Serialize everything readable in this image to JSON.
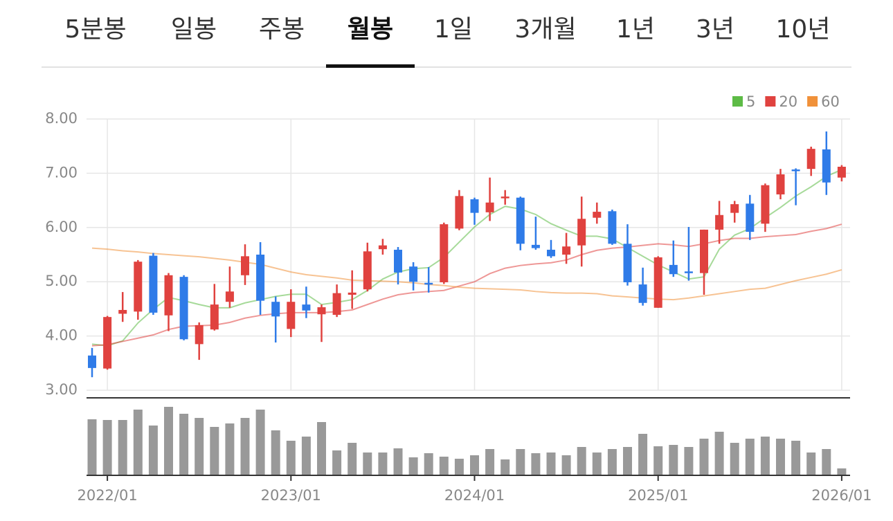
{
  "tabs": {
    "items": [
      "5분봉",
      "일봉",
      "주봉",
      "월봉",
      "1일",
      "3개월",
      "1년",
      "3년",
      "10년"
    ],
    "active": 3
  },
  "chart_data": {
    "type": "candlestick",
    "categories": [
      null,
      "2022/01",
      null,
      null,
      null,
      null,
      null,
      null,
      null,
      null,
      null,
      null,
      null,
      "2023/01",
      null,
      null,
      null,
      null,
      null,
      null,
      null,
      null,
      null,
      null,
      null,
      "2024/01",
      null,
      null,
      null,
      null,
      null,
      null,
      null,
      null,
      null,
      null,
      null,
      "2025/01",
      null,
      null,
      null,
      null,
      null,
      null,
      null,
      null,
      null,
      null,
      null,
      "2026/01"
    ],
    "open": [
      3.64,
      3.4,
      4.41,
      4.45,
      5.48,
      4.38,
      5.09,
      3.85,
      4.12,
      4.63,
      5.12,
      5.5,
      4.63,
      4.13,
      4.58,
      4.4,
      4.39,
      4.76,
      4.86,
      5.6,
      5.59,
      5.28,
      4.98,
      4.99,
      5.98,
      6.52,
      6.28,
      6.55,
      6.55,
      5.68,
      5.59,
      5.5,
      5.67,
      6.18,
      6.3,
      5.7,
      4.95,
      4.52,
      5.31,
      5.19,
      5.16,
      5.96,
      6.27,
      6.44,
      6.07,
      6.61,
      7.07,
      7.08,
      7.44,
      6.92
    ],
    "high": [
      3.78,
      4.37,
      4.81,
      5.4,
      5.53,
      5.16,
      5.12,
      4.25,
      4.96,
      5.28,
      5.69,
      5.73,
      4.73,
      4.86,
      4.91,
      4.58,
      4.95,
      5.21,
      5.72,
      5.79,
      5.64,
      5.36,
      5.27,
      6.09,
      6.69,
      6.55,
      6.92,
      6.69,
      6.57,
      6.2,
      5.77,
      5.9,
      6.57,
      6.46,
      6.33,
      6.06,
      5.26,
      5.47,
      5.76,
      6.01,
      5.96,
      6.49,
      6.49,
      6.6,
      6.81,
      7.08,
      7.09,
      7.49,
      7.77,
      7.15
    ],
    "low": [
      3.24,
      3.38,
      4.26,
      4.3,
      4.39,
      4.09,
      3.92,
      3.56,
      4.1,
      4.52,
      4.94,
      4.39,
      3.88,
      3.98,
      4.33,
      3.89,
      4.35,
      4.5,
      4.82,
      5.5,
      4.95,
      4.84,
      4.8,
      4.96,
      5.95,
      6.05,
      6.12,
      6.42,
      5.58,
      5.59,
      5.44,
      5.33,
      5.28,
      6.07,
      5.68,
      4.93,
      4.56,
      4.52,
      5.09,
      5.02,
      4.76,
      5.7,
      6.09,
      5.77,
      5.92,
      6.52,
      6.41,
      6.95,
      6.6,
      6.85
    ],
    "close": [
      3.41,
      4.35,
      4.48,
      5.37,
      4.43,
      5.12,
      3.94,
      4.2,
      4.58,
      4.82,
      5.47,
      4.65,
      4.36,
      4.63,
      4.47,
      4.53,
      4.79,
      4.8,
      5.56,
      5.67,
      5.17,
      5.0,
      4.96,
      6.06,
      6.58,
      6.27,
      6.46,
      6.57,
      5.7,
      5.62,
      5.47,
      5.65,
      6.16,
      6.29,
      5.7,
      4.99,
      4.61,
      5.45,
      5.14,
      5.17,
      5.96,
      6.23,
      6.43,
      5.92,
      6.78,
      6.98,
      7.04,
      7.45,
      6.83,
      7.12
    ],
    "up_color": "#e0423f",
    "down_color": "#2f7be8",
    "moving_averages": [
      {
        "name": "5",
        "color": "#5dbb46",
        "values": [
          3.85,
          3.82,
          3.91,
          4.24,
          4.49,
          4.71,
          4.65,
          4.58,
          4.52,
          4.52,
          4.61,
          4.67,
          4.73,
          4.77,
          4.77,
          4.58,
          4.62,
          4.67,
          4.84,
          5.05,
          5.18,
          5.24,
          5.26,
          5.45,
          5.73,
          6.01,
          6.24,
          6.39,
          6.34,
          6.24,
          6.07,
          5.95,
          5.84,
          5.84,
          5.79,
          5.63,
          5.47,
          5.31,
          5.18,
          5.05,
          5.09,
          5.6,
          5.86,
          5.98,
          6.18,
          6.37,
          6.58,
          6.75,
          6.94,
          7.07
        ]
      },
      {
        "name": "20",
        "color": "#e0423f",
        "values": [
          3.82,
          3.84,
          3.9,
          3.96,
          4.02,
          4.12,
          4.18,
          4.19,
          4.2,
          4.25,
          4.33,
          4.38,
          4.41,
          4.43,
          4.43,
          4.43,
          4.45,
          4.48,
          4.58,
          4.68,
          4.76,
          4.8,
          4.82,
          4.84,
          4.92,
          5.0,
          5.15,
          5.25,
          5.3,
          5.33,
          5.35,
          5.4,
          5.5,
          5.58,
          5.62,
          5.64,
          5.67,
          5.7,
          5.68,
          5.65,
          5.7,
          5.76,
          5.8,
          5.8,
          5.83,
          5.85,
          5.87,
          5.93,
          5.98,
          6.06
        ]
      },
      {
        "name": "60",
        "color": "#f0913a",
        "values": [
          5.62,
          5.6,
          5.57,
          5.55,
          5.52,
          5.5,
          5.48,
          5.46,
          5.43,
          5.4,
          5.36,
          5.32,
          5.25,
          5.18,
          5.13,
          5.1,
          5.07,
          5.03,
          5.02,
          5.01,
          5.0,
          4.98,
          4.95,
          4.93,
          4.9,
          4.88,
          4.87,
          4.86,
          4.85,
          4.82,
          4.8,
          4.79,
          4.79,
          4.78,
          4.74,
          4.72,
          4.7,
          4.68,
          4.67,
          4.7,
          4.74,
          4.78,
          4.82,
          4.86,
          4.88,
          4.95,
          5.02,
          5.08,
          5.14,
          5.22
        ]
      }
    ],
    "volume": [
      80,
      79,
      79,
      94,
      71,
      98,
      88,
      82,
      69,
      74,
      82,
      94,
      64,
      49,
      55,
      76,
      35,
      46,
      32,
      32,
      38,
      25,
      31,
      26,
      23,
      28,
      37,
      22,
      37,
      31,
      32,
      28,
      40,
      32,
      37,
      40,
      59,
      41,
      43,
      40,
      52,
      62,
      46,
      52,
      55,
      52,
      49,
      32,
      37,
      9
    ],
    "volume_color": "#999999",
    "ylim": [
      3,
      8
    ],
    "yticks": [
      {
        "value": 3,
        "label": "3.00"
      },
      {
        "value": 4,
        "label": "4.00"
      },
      {
        "value": 5,
        "label": "5.00"
      },
      {
        "value": 6,
        "label": "6.00"
      },
      {
        "value": 7,
        "label": "7.00"
      },
      {
        "value": 8,
        "label": "8.00"
      }
    ],
    "grid": true
  }
}
